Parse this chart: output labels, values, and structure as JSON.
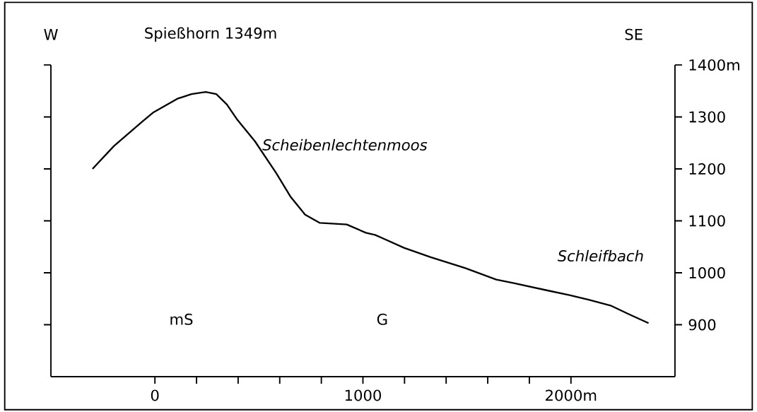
{
  "chart_data": {
    "type": "line",
    "annotations": [
      "W",
      "Spießhorn 1349m",
      "SE",
      "Scheibenlechtenmoos",
      "Schleifbach",
      "mS",
      "G"
    ],
    "x": [
      -300,
      -197,
      -61,
      -10,
      108,
      176,
      244,
      295,
      346,
      397,
      481,
      583,
      651,
      722,
      793,
      922,
      1014,
      1058,
      1092,
      1197,
      1325,
      1492,
      1641,
      1725,
      1875,
      1993,
      2085,
      2190,
      2285,
      2373
    ],
    "series": [
      {
        "color": "#000000",
        "values": [
          1200,
          1244,
          1291,
          1308,
          1335,
          1344,
          1348,
          1344,
          1324,
          1294,
          1253,
          1192,
          1147,
          1112,
          1096,
          1093,
          1077,
          1073,
          1067,
          1048,
          1030,
          1009,
          987,
          980,
          967,
          957,
          948,
          937,
          919,
          903
        ]
      }
    ],
    "xlim": [
      -500,
      2500
    ],
    "ylim": [
      800,
      1400
    ],
    "xticks": [
      0,
      {
        "value": 200,
        "label": null
      },
      {
        "value": 400,
        "label": null
      },
      {
        "value": 600,
        "label": null
      },
      {
        "value": 800,
        "label": null
      },
      1000,
      {
        "value": 1200,
        "label": null
      },
      {
        "value": 1400,
        "label": null
      },
      {
        "value": 1600,
        "label": null
      },
      {
        "value": 1800,
        "label": null
      },
      {
        "value": 2000,
        "label": "2000m"
      }
    ],
    "yticks": [
      900,
      1000,
      1100,
      1200,
      1300,
      {
        "value": 1400,
        "label": "1400m"
      }
    ],
    "grid": false,
    "line_style": "solid"
  }
}
